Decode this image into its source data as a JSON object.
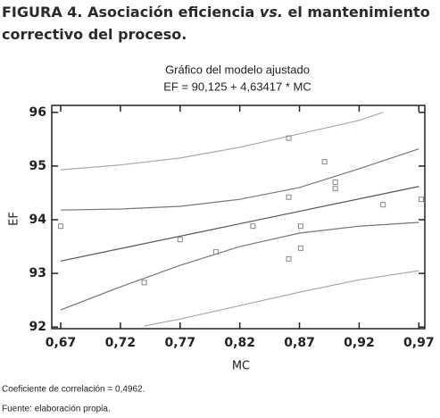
{
  "caption": {
    "line1": [
      "FIGURA 4. Asociación eficiencia ",
      "vs.",
      " el mantenimiento"
    ],
    "line2": "correctivo del proceso."
  },
  "chart_data": {
    "type": "scatter",
    "title": "Gráfico del modelo ajustado",
    "subtitle": "EF = 90,125 + 4,63417 * MC",
    "x_label": "MC",
    "y_label": "EF",
    "x": [
      0.67,
      0.74,
      0.77,
      0.8,
      0.831,
      0.861,
      0.861,
      0.861,
      0.871,
      0.871,
      0.891,
      0.9,
      0.9,
      0.94,
      0.972
    ],
    "values": [
      93.88,
      92.83,
      93.63,
      93.4,
      93.88,
      95.52,
      94.42,
      93.27,
      93.88,
      93.47,
      95.08,
      94.7,
      94.58,
      94.28,
      94.38
    ],
    "color": "#888888",
    "lines": [
      {
        "x": [
          0.67,
          0.97
        ],
        "values": [
          93.23,
          94.62
        ],
        "color": "#555555"
      },
      {
        "x": [
          0.67,
          0.72,
          0.77,
          0.82,
          0.87,
          0.92,
          0.97
        ],
        "values": [
          94.18,
          94.2,
          94.25,
          94.38,
          94.6,
          94.95,
          95.32
        ],
        "color": "#777777"
      },
      {
        "x": [
          0.67,
          0.72,
          0.77,
          0.82,
          0.87,
          0.92,
          0.97
        ],
        "values": [
          92.32,
          92.75,
          93.15,
          93.5,
          93.75,
          93.88,
          93.95
        ],
        "color": "#777777"
      },
      {
        "x": [
          0.67,
          0.72,
          0.77,
          0.82,
          0.87,
          0.92,
          0.94
        ],
        "values": [
          94.93,
          95.02,
          95.15,
          95.35,
          95.6,
          95.85,
          96.0
        ],
        "color": "#aaaaaa"
      },
      {
        "x": [
          0.74,
          0.77,
          0.82,
          0.87,
          0.92,
          0.97
        ],
        "values": [
          92.02,
          92.15,
          92.4,
          92.65,
          92.88,
          93.05
        ],
        "color": "#aaaaaa"
      }
    ],
    "xlim": [
      0.6625,
      0.975
    ],
    "ylim": [
      91.97,
      96.13
    ],
    "xticks": [
      {
        "value": 0.67,
        "label": "0,67"
      },
      {
        "value": 0.72,
        "label": "0,72"
      },
      {
        "value": 0.77,
        "label": "0,77"
      },
      {
        "value": 0.82,
        "label": "0,82"
      },
      {
        "value": 0.87,
        "label": "0,87"
      },
      {
        "value": 0.92,
        "label": "0,92"
      },
      {
        "value": 0.97,
        "label": "0,97"
      }
    ],
    "yticks": [
      92,
      93,
      94,
      95,
      96
    ]
  },
  "notes": [
    "Coeficiente de correlación = 0,4962.",
    "Fuente: elaboración propia."
  ]
}
